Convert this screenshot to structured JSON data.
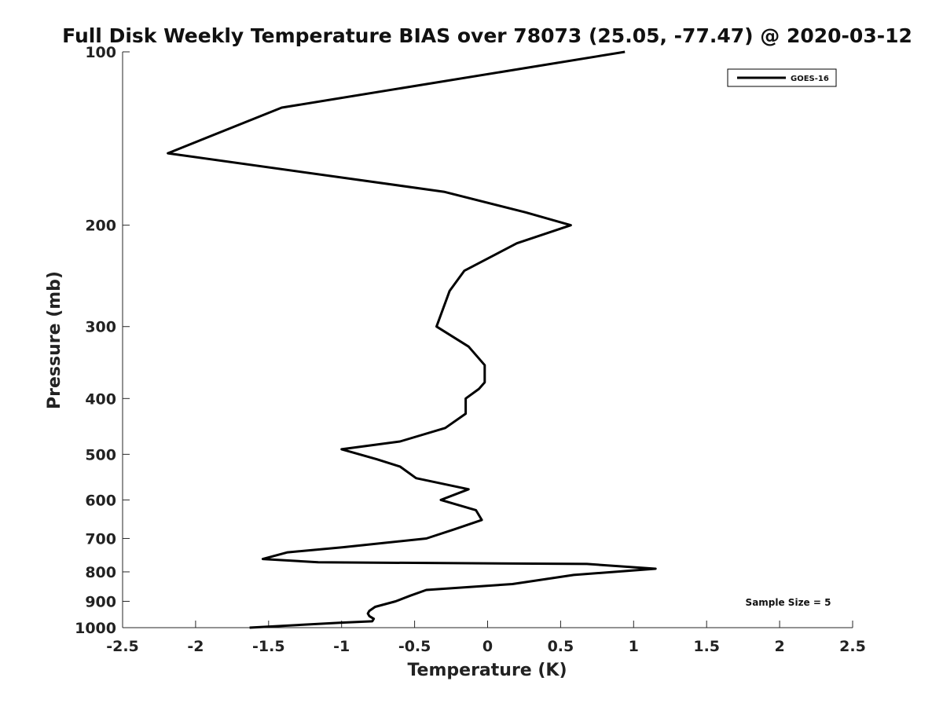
{
  "chart_data": {
    "type": "line",
    "title": "Full Disk Weekly Temperature BIAS over 78073 (25.05, -77.47) @ 2020-03-12",
    "xlabel": "Temperature (K)",
    "ylabel": "Pressure (mb)",
    "xlim": [
      -2.5,
      2.5
    ],
    "ylim": [
      100,
      1000
    ],
    "y_scale": "log",
    "y_reversed": true,
    "x_ticks": [
      -2.5,
      -2,
      -1.5,
      -1,
      -0.5,
      0,
      0.5,
      1,
      1.5,
      2,
      2.5
    ],
    "x_tick_labels": [
      "-2.5",
      "-2",
      "-1.5",
      "-1",
      "-0.5",
      "0",
      "0.5",
      "1",
      "1.5",
      "2",
      "2.5"
    ],
    "y_ticks": [
      100,
      200,
      300,
      400,
      500,
      600,
      700,
      800,
      900,
      1000
    ],
    "y_tick_labels": [
      "100",
      "200",
      "300",
      "400",
      "500",
      "600",
      "700",
      "800",
      "900",
      "1000"
    ],
    "grid": false,
    "legend_position": "top-right",
    "series": [
      {
        "name": "GOES-16",
        "color": "#000000",
        "x": [
          0.94,
          -1.41,
          -2.19,
          -0.3,
          0.26,
          0.57,
          0.2,
          -0.16,
          -0.26,
          -0.35,
          -0.13,
          -0.02,
          -0.02,
          -0.06,
          -0.15,
          -0.15,
          -0.29,
          -0.6,
          -1.0,
          -0.76,
          -0.6,
          -0.49,
          -0.13,
          -0.32,
          -0.08,
          -0.04,
          -0.23,
          -0.42,
          -0.99,
          -1.37,
          -1.54,
          -1.16,
          0.68,
          1.15,
          0.59,
          0.17,
          -0.42,
          -0.53,
          -0.63,
          -0.77,
          -0.81,
          -0.82,
          -0.81,
          -0.78,
          -0.79,
          -1.0,
          -1.63
        ],
        "y": [
          100,
          125,
          150,
          175,
          190,
          200,
          215,
          240,
          260,
          300,
          325,
          350,
          375,
          385,
          400,
          425,
          450,
          475,
          490,
          510,
          525,
          550,
          575,
          600,
          625,
          650,
          675,
          700,
          725,
          740,
          760,
          770,
          775,
          790,
          810,
          840,
          860,
          880,
          900,
          920,
          935,
          945,
          955,
          965,
          975,
          980,
          1000
        ]
      }
    ],
    "annotation": "Sample Size = 5"
  }
}
